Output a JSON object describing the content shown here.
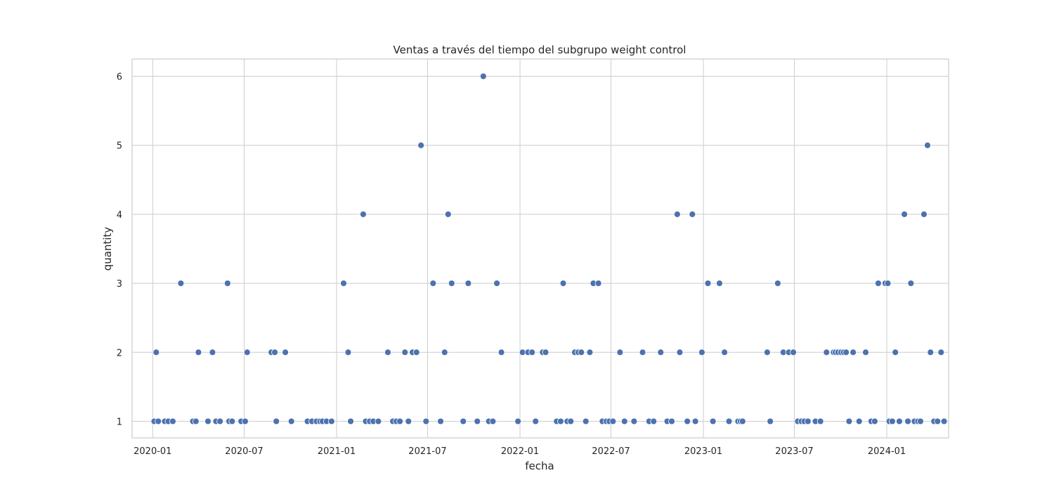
{
  "chart_data": {
    "type": "scatter",
    "title": "Ventas a través del tiempo del subgrupo weight control",
    "xlabel": "fecha",
    "ylabel": "quantity",
    "x_ticks": [
      "2020-01",
      "2020-07",
      "2021-01",
      "2021-07",
      "2022-01",
      "2022-07",
      "2023-01",
      "2023-07",
      "2024-01"
    ],
    "y_ticks": [
      1,
      2,
      3,
      4,
      5,
      6
    ],
    "xlim": [
      "2019-11-21",
      "2024-05-03"
    ],
    "ylim": [
      0.76,
      6.25
    ],
    "grid": true,
    "color": "#4c72b0",
    "points": [
      {
        "x": "2020-01-04",
        "y": 1
      },
      {
        "x": "2020-01-08",
        "y": 2
      },
      {
        "x": "2020-01-12",
        "y": 1
      },
      {
        "x": "2020-01-25",
        "y": 1
      },
      {
        "x": "2020-02-01",
        "y": 1
      },
      {
        "x": "2020-02-10",
        "y": 1
      },
      {
        "x": "2020-02-26",
        "y": 3
      },
      {
        "x": "2020-03-21",
        "y": 1
      },
      {
        "x": "2020-03-27",
        "y": 1
      },
      {
        "x": "2020-04-01",
        "y": 2
      },
      {
        "x": "2020-04-20",
        "y": 1
      },
      {
        "x": "2020-04-29",
        "y": 2
      },
      {
        "x": "2020-05-06",
        "y": 1
      },
      {
        "x": "2020-05-14",
        "y": 1
      },
      {
        "x": "2020-05-29",
        "y": 3
      },
      {
        "x": "2020-06-01",
        "y": 1
      },
      {
        "x": "2020-06-07",
        "y": 1
      },
      {
        "x": "2020-06-25",
        "y": 1
      },
      {
        "x": "2020-07-03",
        "y": 1
      },
      {
        "x": "2020-07-07",
        "y": 2
      },
      {
        "x": "2020-08-24",
        "y": 2
      },
      {
        "x": "2020-08-31",
        "y": 2
      },
      {
        "x": "2020-09-03",
        "y": 1
      },
      {
        "x": "2020-09-21",
        "y": 2
      },
      {
        "x": "2020-10-03",
        "y": 1
      },
      {
        "x": "2020-11-04",
        "y": 1
      },
      {
        "x": "2020-11-13",
        "y": 1
      },
      {
        "x": "2020-11-22",
        "y": 1
      },
      {
        "x": "2020-11-29",
        "y": 1
      },
      {
        "x": "2020-12-04",
        "y": 1
      },
      {
        "x": "2020-12-12",
        "y": 1
      },
      {
        "x": "2020-12-22",
        "y": 1
      },
      {
        "x": "2021-01-15",
        "y": 3
      },
      {
        "x": "2021-01-24",
        "y": 2
      },
      {
        "x": "2021-01-29",
        "y": 1
      },
      {
        "x": "2021-02-23",
        "y": 4
      },
      {
        "x": "2021-02-28",
        "y": 1
      },
      {
        "x": "2021-03-08",
        "y": 1
      },
      {
        "x": "2021-03-15",
        "y": 1
      },
      {
        "x": "2021-03-25",
        "y": 1
      },
      {
        "x": "2021-04-13",
        "y": 2
      },
      {
        "x": "2021-04-23",
        "y": 1
      },
      {
        "x": "2021-04-30",
        "y": 1
      },
      {
        "x": "2021-05-07",
        "y": 1
      },
      {
        "x": "2021-05-17",
        "y": 2
      },
      {
        "x": "2021-05-24",
        "y": 1
      },
      {
        "x": "2021-06-01",
        "y": 2
      },
      {
        "x": "2021-06-09",
        "y": 2
      },
      {
        "x": "2021-06-18",
        "y": 5
      },
      {
        "x": "2021-06-28",
        "y": 1
      },
      {
        "x": "2021-07-12",
        "y": 3
      },
      {
        "x": "2021-07-27",
        "y": 1
      },
      {
        "x": "2021-08-04",
        "y": 2
      },
      {
        "x": "2021-08-11",
        "y": 4
      },
      {
        "x": "2021-08-18",
        "y": 3
      },
      {
        "x": "2021-09-10",
        "y": 1
      },
      {
        "x": "2021-09-20",
        "y": 3
      },
      {
        "x": "2021-10-08",
        "y": 1
      },
      {
        "x": "2021-10-20",
        "y": 6
      },
      {
        "x": "2021-10-31",
        "y": 1
      },
      {
        "x": "2021-11-08",
        "y": 1
      },
      {
        "x": "2021-11-16",
        "y": 3
      },
      {
        "x": "2021-11-25",
        "y": 2
      },
      {
        "x": "2021-12-28",
        "y": 1
      },
      {
        "x": "2022-01-06",
        "y": 2
      },
      {
        "x": "2022-01-17",
        "y": 2
      },
      {
        "x": "2022-01-25",
        "y": 2
      },
      {
        "x": "2022-02-01",
        "y": 1
      },
      {
        "x": "2022-02-15",
        "y": 2
      },
      {
        "x": "2022-02-21",
        "y": 2
      },
      {
        "x": "2022-03-15",
        "y": 1
      },
      {
        "x": "2022-03-23",
        "y": 1
      },
      {
        "x": "2022-03-28",
        "y": 3
      },
      {
        "x": "2022-04-05",
        "y": 1
      },
      {
        "x": "2022-04-12",
        "y": 1
      },
      {
        "x": "2022-04-20",
        "y": 2
      },
      {
        "x": "2022-04-27",
        "y": 2
      },
      {
        "x": "2022-05-03",
        "y": 2
      },
      {
        "x": "2022-05-12",
        "y": 1
      },
      {
        "x": "2022-05-20",
        "y": 2
      },
      {
        "x": "2022-05-27",
        "y": 3
      },
      {
        "x": "2022-06-06",
        "y": 3
      },
      {
        "x": "2022-06-14",
        "y": 1
      },
      {
        "x": "2022-06-22",
        "y": 1
      },
      {
        "x": "2022-06-28",
        "y": 1
      },
      {
        "x": "2022-07-05",
        "y": 1
      },
      {
        "x": "2022-07-19",
        "y": 2
      },
      {
        "x": "2022-07-28",
        "y": 1
      },
      {
        "x": "2022-08-16",
        "y": 1
      },
      {
        "x": "2022-09-02",
        "y": 2
      },
      {
        "x": "2022-09-15",
        "y": 1
      },
      {
        "x": "2022-09-24",
        "y": 1
      },
      {
        "x": "2022-10-08",
        "y": 2
      },
      {
        "x": "2022-10-21",
        "y": 1
      },
      {
        "x": "2022-10-30",
        "y": 1
      },
      {
        "x": "2022-11-10",
        "y": 4
      },
      {
        "x": "2022-11-15",
        "y": 2
      },
      {
        "x": "2022-11-30",
        "y": 1
      },
      {
        "x": "2022-12-10",
        "y": 4
      },
      {
        "x": "2022-12-16",
        "y": 1
      },
      {
        "x": "2022-12-29",
        "y": 2
      },
      {
        "x": "2023-01-10",
        "y": 3
      },
      {
        "x": "2023-01-20",
        "y": 1
      },
      {
        "x": "2023-02-02",
        "y": 3
      },
      {
        "x": "2023-02-12",
        "y": 2
      },
      {
        "x": "2023-02-21",
        "y": 1
      },
      {
        "x": "2023-03-11",
        "y": 1
      },
      {
        "x": "2023-03-16",
        "y": 1
      },
      {
        "x": "2023-03-20",
        "y": 1
      },
      {
        "x": "2023-05-08",
        "y": 2
      },
      {
        "x": "2023-05-14",
        "y": 1
      },
      {
        "x": "2023-05-29",
        "y": 3
      },
      {
        "x": "2023-06-09",
        "y": 2
      },
      {
        "x": "2023-06-20",
        "y": 2
      },
      {
        "x": "2023-06-29",
        "y": 2
      },
      {
        "x": "2023-07-08",
        "y": 1
      },
      {
        "x": "2023-07-15",
        "y": 1
      },
      {
        "x": "2023-07-21",
        "y": 1
      },
      {
        "x": "2023-07-28",
        "y": 1
      },
      {
        "x": "2023-08-12",
        "y": 1
      },
      {
        "x": "2023-08-22",
        "y": 1
      },
      {
        "x": "2023-09-03",
        "y": 2
      },
      {
        "x": "2023-09-17",
        "y": 2
      },
      {
        "x": "2023-09-21",
        "y": 2
      },
      {
        "x": "2023-09-26",
        "y": 2
      },
      {
        "x": "2023-10-02",
        "y": 2
      },
      {
        "x": "2023-10-07",
        "y": 2
      },
      {
        "x": "2023-10-12",
        "y": 2
      },
      {
        "x": "2023-10-18",
        "y": 1
      },
      {
        "x": "2023-10-26",
        "y": 2
      },
      {
        "x": "2023-11-07",
        "y": 1
      },
      {
        "x": "2023-11-20",
        "y": 2
      },
      {
        "x": "2023-12-01",
        "y": 1
      },
      {
        "x": "2023-12-08",
        "y": 1
      },
      {
        "x": "2023-12-15",
        "y": 3
      },
      {
        "x": "2023-12-29",
        "y": 3
      },
      {
        "x": "2024-01-03",
        "y": 3
      },
      {
        "x": "2024-01-06",
        "y": 1
      },
      {
        "x": "2024-01-12",
        "y": 1
      },
      {
        "x": "2024-01-18",
        "y": 2
      },
      {
        "x": "2024-01-26",
        "y": 1
      },
      {
        "x": "2024-02-05",
        "y": 4
      },
      {
        "x": "2024-02-12",
        "y": 1
      },
      {
        "x": "2024-02-18",
        "y": 3
      },
      {
        "x": "2024-02-25",
        "y": 1
      },
      {
        "x": "2024-03-03",
        "y": 1
      },
      {
        "x": "2024-03-08",
        "y": 1
      },
      {
        "x": "2024-03-15",
        "y": 4
      },
      {
        "x": "2024-03-22",
        "y": 5
      },
      {
        "x": "2024-03-28",
        "y": 2
      },
      {
        "x": "2024-04-04",
        "y": 1
      },
      {
        "x": "2024-04-11",
        "y": 1
      },
      {
        "x": "2024-04-18",
        "y": 2
      },
      {
        "x": "2024-04-24",
        "y": 1
      }
    ]
  }
}
